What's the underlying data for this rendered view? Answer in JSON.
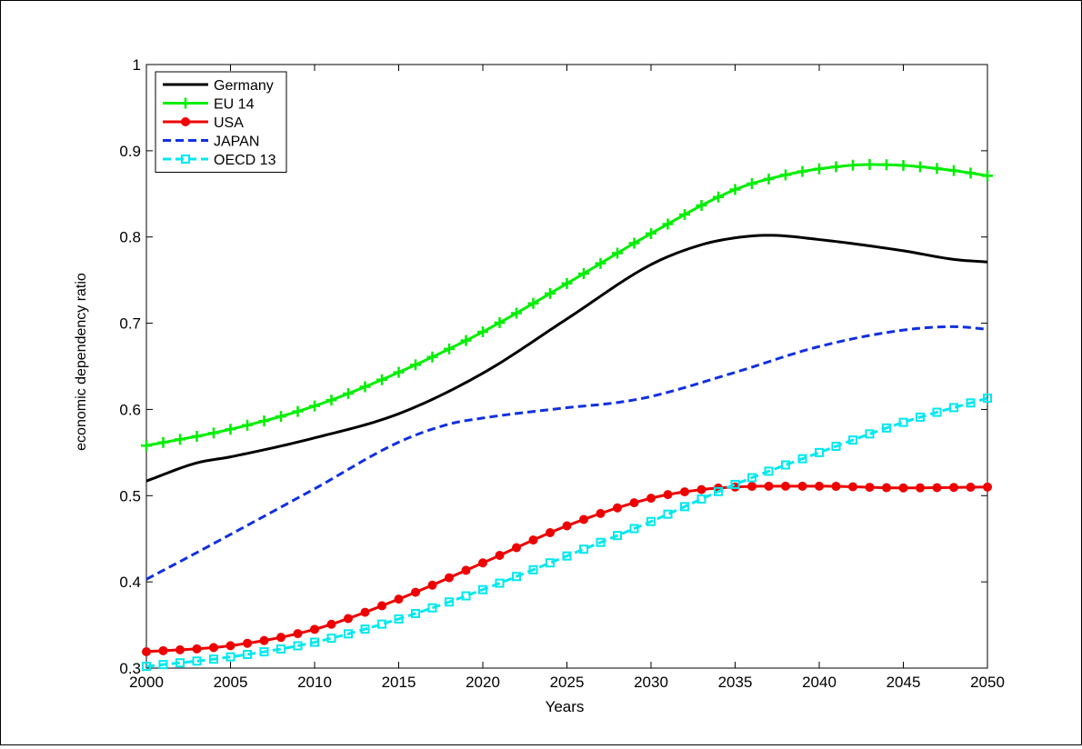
{
  "chart_data": {
    "type": "line",
    "title": "",
    "xlabel": "Years",
    "ylabel": "economic dependency ratio",
    "xlim": [
      2000,
      2050
    ],
    "ylim": [
      0.3,
      1.0
    ],
    "xticks": [
      2000,
      2005,
      2010,
      2015,
      2020,
      2025,
      2030,
      2035,
      2040,
      2045,
      2050
    ],
    "yticks": [
      0.3,
      0.4,
      0.5,
      0.6,
      0.7,
      0.8,
      0.9,
      1.0
    ],
    "xtick_labels": [
      "2000",
      "2005",
      "2010",
      "2015",
      "2020",
      "2025",
      "2030",
      "2035",
      "2040",
      "2045",
      "2050"
    ],
    "ytick_labels": [
      "0.3",
      "0.4",
      "0.5",
      "0.6",
      "0.7",
      "0.8",
      "0.9",
      "1"
    ],
    "grid": false,
    "legend_position": "top-left",
    "series": [
      {
        "name": "Germany",
        "color": "#000000",
        "style": "solid",
        "marker": "none",
        "x": [
          2000,
          2003,
          2005,
          2010,
          2015,
          2020,
          2025,
          2030,
          2033,
          2035,
          2037,
          2040,
          2045,
          2048,
          2050
        ],
        "y": [
          0.517,
          0.538,
          0.545,
          0.567,
          0.595,
          0.642,
          0.705,
          0.768,
          0.791,
          0.799,
          0.802,
          0.797,
          0.784,
          0.774,
          0.771
        ]
      },
      {
        "name": "EU 14",
        "color": "#00ee00",
        "style": "solid",
        "marker": "plus",
        "x": [
          2000,
          2005,
          2010,
          2015,
          2020,
          2025,
          2030,
          2035,
          2038,
          2040,
          2043,
          2045,
          2048,
          2050
        ],
        "y": [
          0.558,
          0.577,
          0.604,
          0.643,
          0.69,
          0.746,
          0.804,
          0.855,
          0.872,
          0.879,
          0.884,
          0.883,
          0.877,
          0.871
        ]
      },
      {
        "name": "USA",
        "color": "#ee0000",
        "style": "solid",
        "marker": "circle",
        "x": [
          2000,
          2005,
          2010,
          2015,
          2020,
          2025,
          2030,
          2033,
          2035,
          2037,
          2040,
          2045,
          2050
        ],
        "y": [
          0.319,
          0.326,
          0.345,
          0.38,
          0.422,
          0.465,
          0.497,
          0.507,
          0.51,
          0.511,
          0.511,
          0.509,
          0.51
        ]
      },
      {
        "name": "JAPAN",
        "color": "#1030e0",
        "style": "dashed",
        "marker": "none",
        "x": [
          2000,
          2003,
          2005,
          2010,
          2015,
          2018,
          2020,
          2025,
          2028,
          2030,
          2035,
          2040,
          2045,
          2048,
          2050
        ],
        "y": [
          0.403,
          0.434,
          0.455,
          0.508,
          0.562,
          0.583,
          0.59,
          0.602,
          0.608,
          0.615,
          0.643,
          0.673,
          0.692,
          0.696,
          0.693
        ]
      },
      {
        "name": "OECD 13",
        "color": "#00e8f0",
        "style": "dashed",
        "marker": "square",
        "x": [
          2000,
          2005,
          2010,
          2015,
          2020,
          2025,
          2030,
          2035,
          2040,
          2045,
          2050
        ],
        "y": [
          0.302,
          0.313,
          0.33,
          0.357,
          0.391,
          0.43,
          0.47,
          0.513,
          0.55,
          0.585,
          0.613
        ]
      }
    ]
  }
}
